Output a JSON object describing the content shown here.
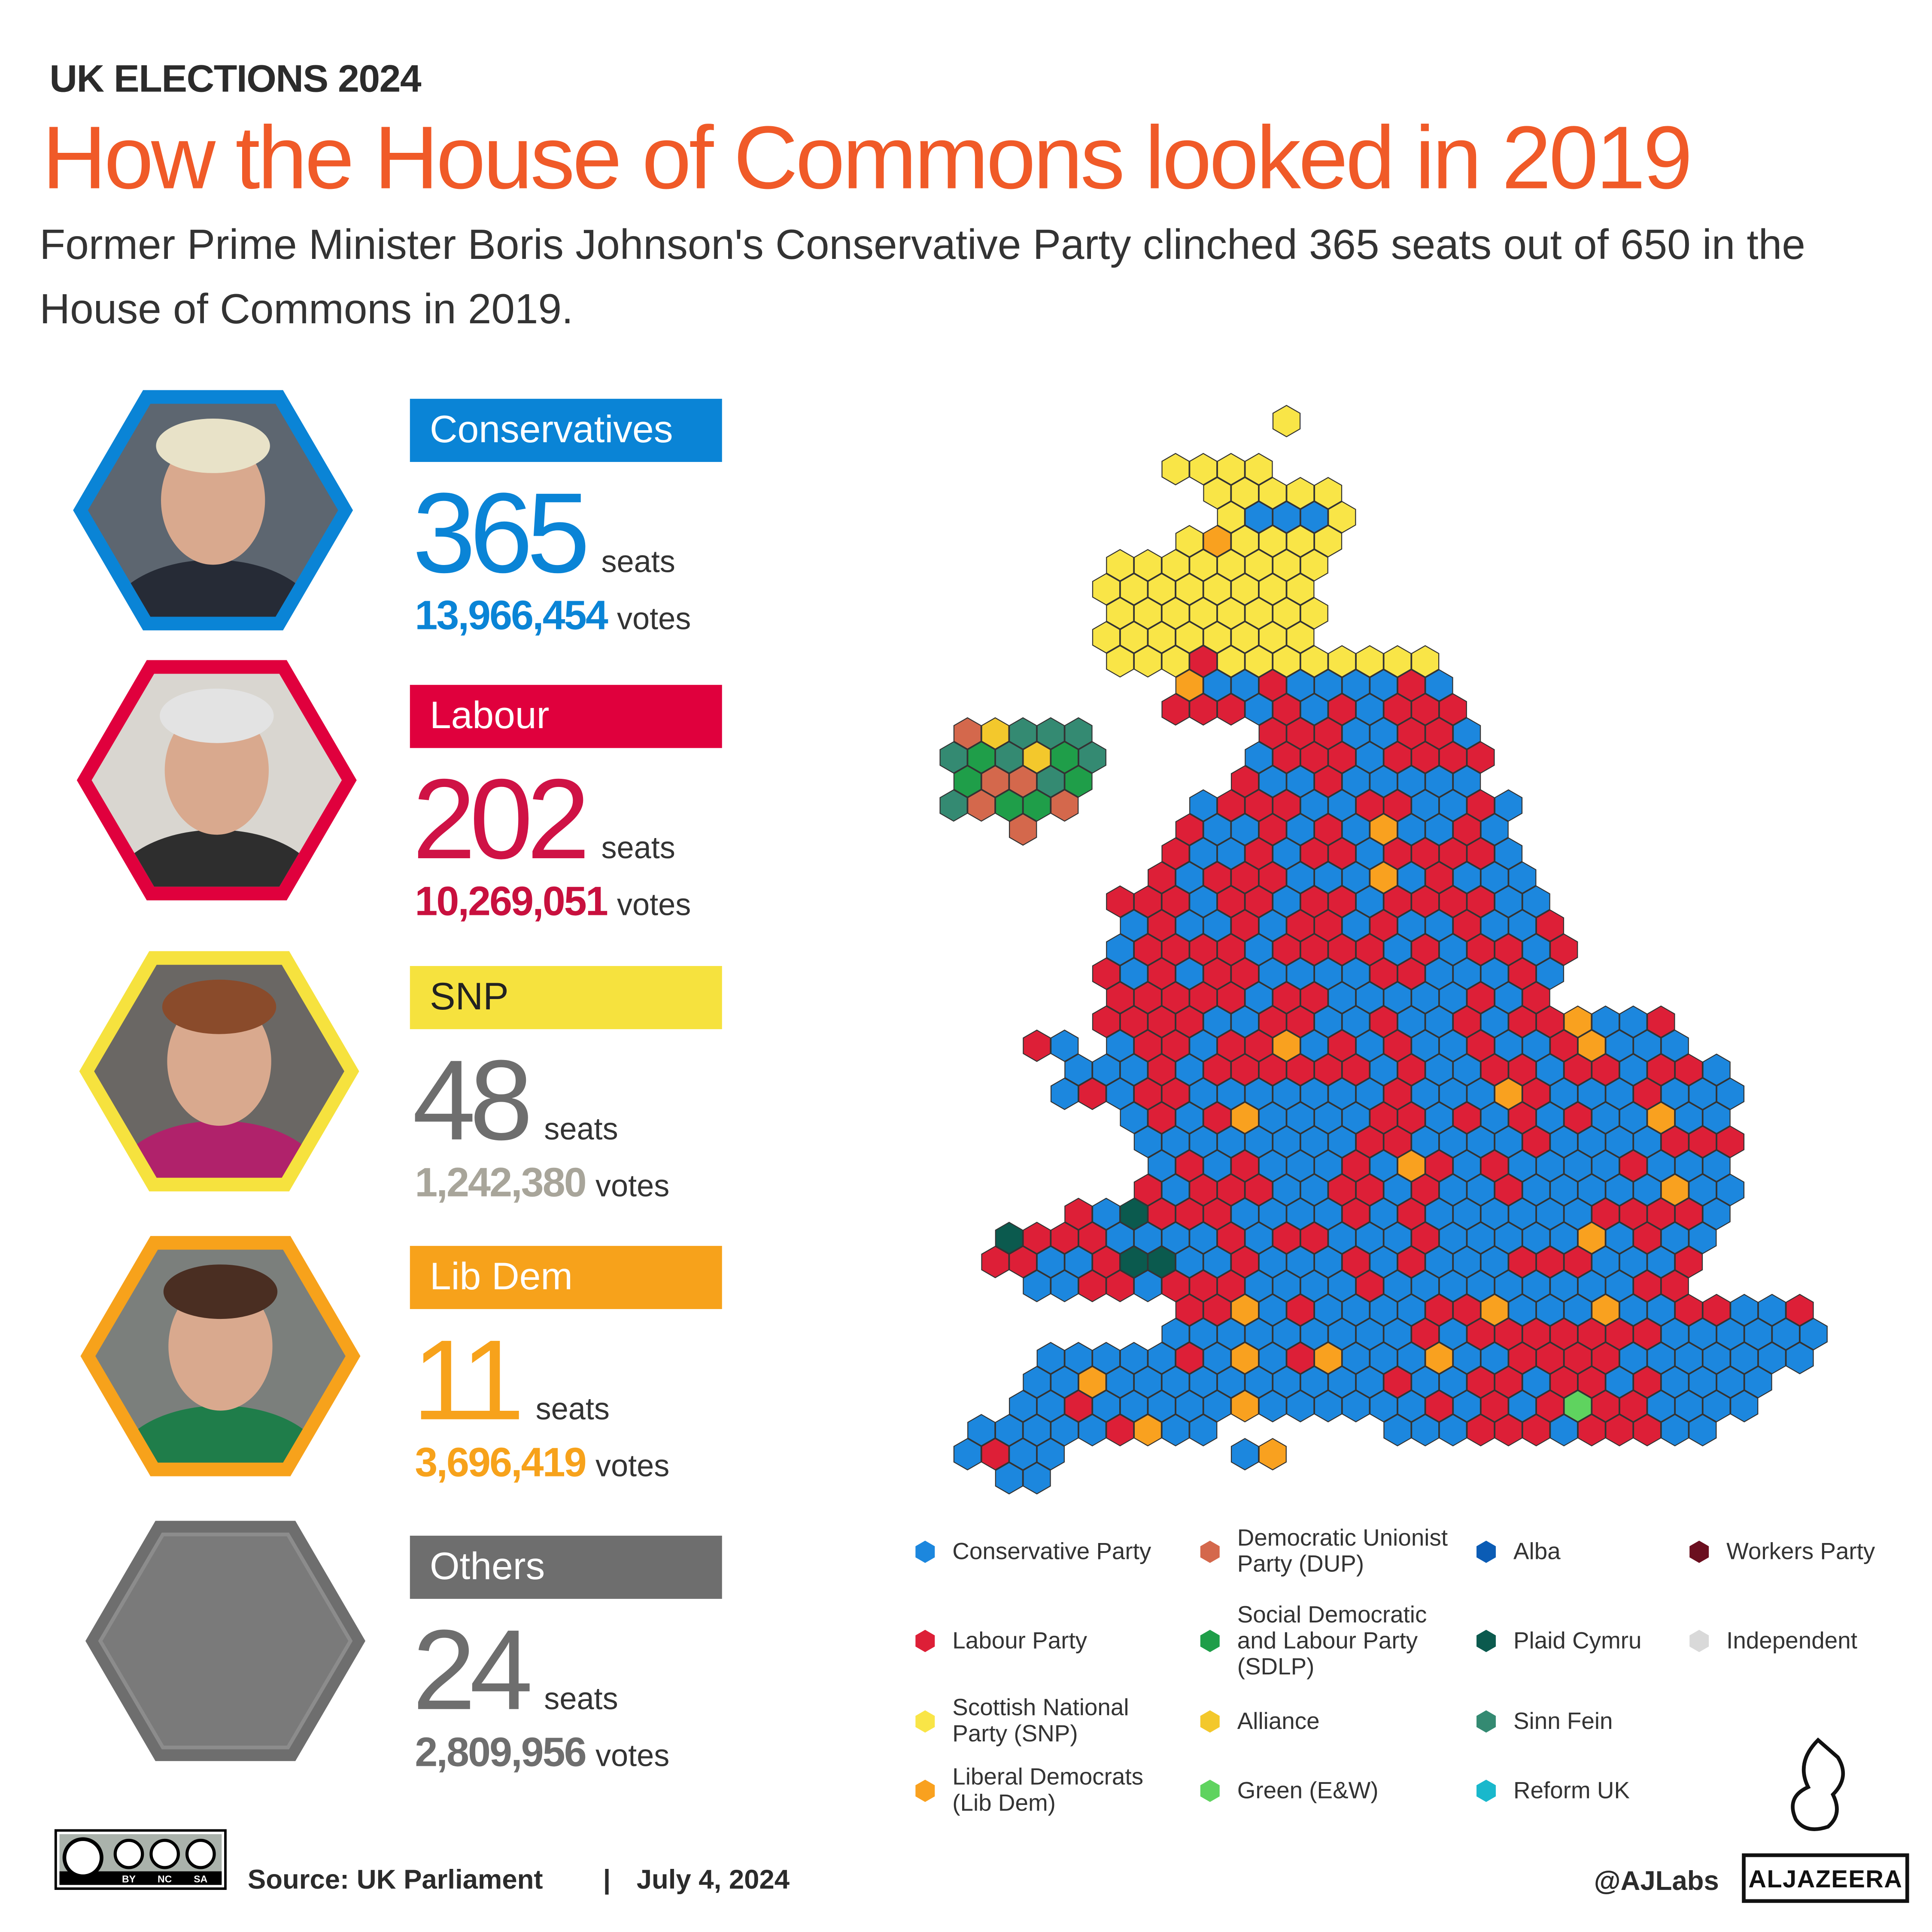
{
  "header": {
    "kicker": "UK ELECTIONS 2024",
    "title": "How the House of Commons looked in 2019",
    "subtitle": "Former Prime Minister Boris Johnson's Conservative Party clinched 365 seats out of 650 in the House of Commons in 2019."
  },
  "parties": [
    {
      "name": "Conservatives",
      "seats": 365,
      "seats_unit": "seats",
      "votes": "13,966,454",
      "votes_unit": "votes",
      "box_color": "#0a84d6",
      "label_color": "#ffffff",
      "seats_color": "#0a84d6",
      "votes_color": "#0a84d6",
      "frame_color": "#0a84d6"
    },
    {
      "name": "Labour",
      "seats": 202,
      "seats_unit": "seats",
      "votes": "10,269,051",
      "votes_unit": "votes",
      "box_color": "#e0003d",
      "label_color": "#ffffff",
      "seats_color": "#cf1245",
      "votes_color": "#c8103e",
      "frame_color": "#e0003d"
    },
    {
      "name": "SNP",
      "seats": 48,
      "seats_unit": "seats",
      "votes": "1,242,380",
      "votes_unit": "votes",
      "box_color": "#f6e23e",
      "label_color": "#222222",
      "seats_color": "#6e6e6e",
      "votes_color": "#a8a59a",
      "frame_color": "#f6e23e"
    },
    {
      "name": "Lib Dem",
      "seats": 11,
      "seats_unit": "seats",
      "votes": "3,696,419",
      "votes_unit": "votes",
      "box_color": "#f7a21b",
      "label_color": "#ffffff",
      "seats_color": "#f7a21b",
      "votes_color": "#f7a21b",
      "frame_color": "#f7a21b"
    },
    {
      "name": "Others",
      "seats": 24,
      "seats_unit": "seats",
      "votes": "2,809,956",
      "votes_unit": "votes",
      "box_color": "#6e6e6e",
      "label_color": "#ffffff",
      "seats_color": "#6e6e6e",
      "votes_color": "#6e6e6e",
      "frame_color": "#6e6e6e"
    }
  ],
  "legend": [
    {
      "name": "Conservative Party",
      "color": "#1c87de"
    },
    {
      "name": "Labour Party",
      "color": "#dd1f37"
    },
    {
      "name": "Scottish National Party (SNP)",
      "color": "#f9e547"
    },
    {
      "name": "Liberal Democrats (Lib Dem)",
      "color": "#f9a11f"
    },
    {
      "name": "Democratic Unionist Party (DUP)",
      "color": "#d4684c"
    },
    {
      "name": "Social Democratic and Labour Party (SDLP)",
      "color": "#1f9e49"
    },
    {
      "name": "Alliance",
      "color": "#f3c82c"
    },
    {
      "name": "Green (E&W)",
      "color": "#5fd35f"
    },
    {
      "name": "Alba",
      "color": "#0b5cb5"
    },
    {
      "name": "Plaid Cymru",
      "color": "#0b5a4e"
    },
    {
      "name": "Sinn Fein",
      "color": "#348a72"
    },
    {
      "name": "Reform UK",
      "color": "#19b8cc"
    },
    {
      "name": "Workers Party",
      "color": "#6b0f1f"
    },
    {
      "name": "Independent",
      "color": "#d9d9d9"
    }
  ],
  "footer": {
    "license": [
      "BY",
      "NC",
      "SA"
    ],
    "source": "Source: UK Parliament",
    "separator": "|",
    "date": "July 4, 2024",
    "handle": "@AJLabs",
    "brand": "ALJAZEERA"
  }
}
